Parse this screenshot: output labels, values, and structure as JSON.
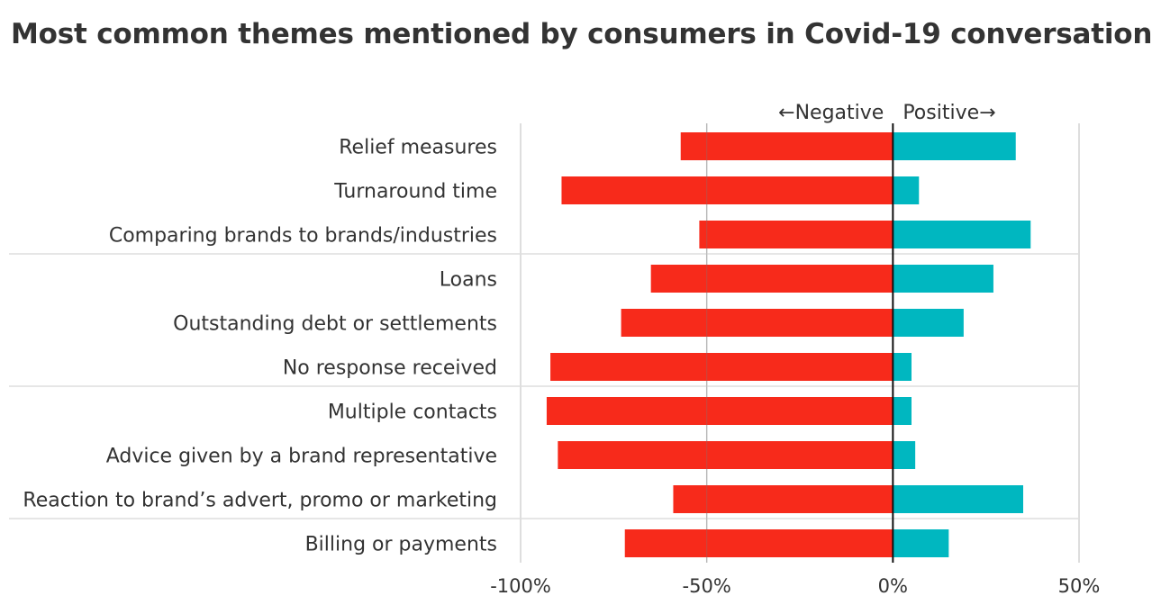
{
  "title": "Most common themes mentioned by consumers in Covid-19 conversation",
  "chart_data": {
    "type": "bar",
    "orientation": "horizontal-diverging",
    "categories": [
      "Relief measures",
      "Turnaround time",
      "Comparing brands to brands/industries",
      "Loans",
      "Outstanding debt or settlements",
      "No response received",
      "Multiple contacts",
      "Advice given by a brand representative",
      "Reaction to brand’s advert, promo or marketing",
      "Billing or payments"
    ],
    "series": [
      {
        "name": "Negative",
        "color": "#f72a1b",
        "values": [
          -57,
          -89,
          -52,
          -65,
          -73,
          -92,
          -93,
          -90,
          -59,
          -72
        ]
      },
      {
        "name": "Positive",
        "color": "#00b7c0",
        "values": [
          33,
          7,
          37,
          27,
          19,
          5,
          5,
          6,
          35,
          15
        ]
      }
    ],
    "groups": [
      [
        0,
        1,
        2
      ],
      [
        3,
        4,
        5
      ],
      [
        6,
        7,
        8
      ],
      [
        9
      ]
    ],
    "xlim": [
      -100,
      50
    ],
    "xticks": [
      -100,
      -50,
      0,
      50
    ],
    "tick_labels": [
      "-100%",
      "-50%",
      "0%",
      "50%"
    ],
    "direction_labels": {
      "left": "←Negative",
      "right": "Positive→"
    },
    "grid": true
  }
}
